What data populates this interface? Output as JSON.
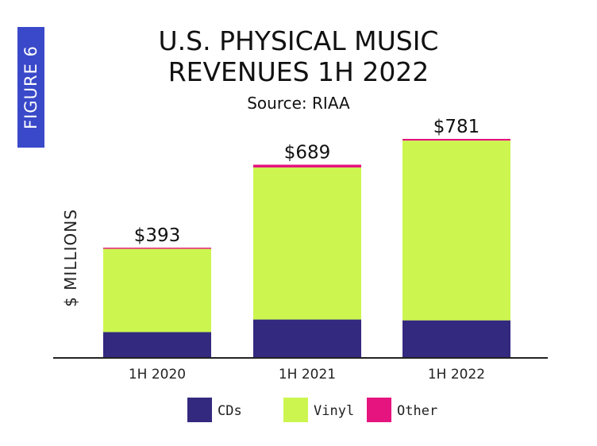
{
  "figure_label": "FIGURE 6",
  "chart_data": {
    "type": "bar",
    "stacked": true,
    "title": [
      "U.S. PHYSICAL MUSIC",
      "REVENUES 1H 2022"
    ],
    "subtitle": "Source: RIAA",
    "ylabel": "$ MILLIONS",
    "xlabel": "",
    "categories": [
      "1H 2020",
      "1H 2021",
      "1H 2022"
    ],
    "series": [
      {
        "name": "CDs",
        "color": "#33297f",
        "values": [
          92,
          137,
          134
        ]
      },
      {
        "name": "Vinyl",
        "color": "#ccf64f",
        "values": [
          297,
          542,
          641
        ]
      },
      {
        "name": "Other",
        "color": "#e5147f",
        "values": [
          4,
          10,
          6
        ]
      }
    ],
    "totals": [
      393,
      689,
      781
    ],
    "total_labels": [
      "$393",
      "$689",
      "$781"
    ],
    "ylim": [
      0,
      781
    ],
    "grid": false,
    "legend_position": "bottom"
  }
}
